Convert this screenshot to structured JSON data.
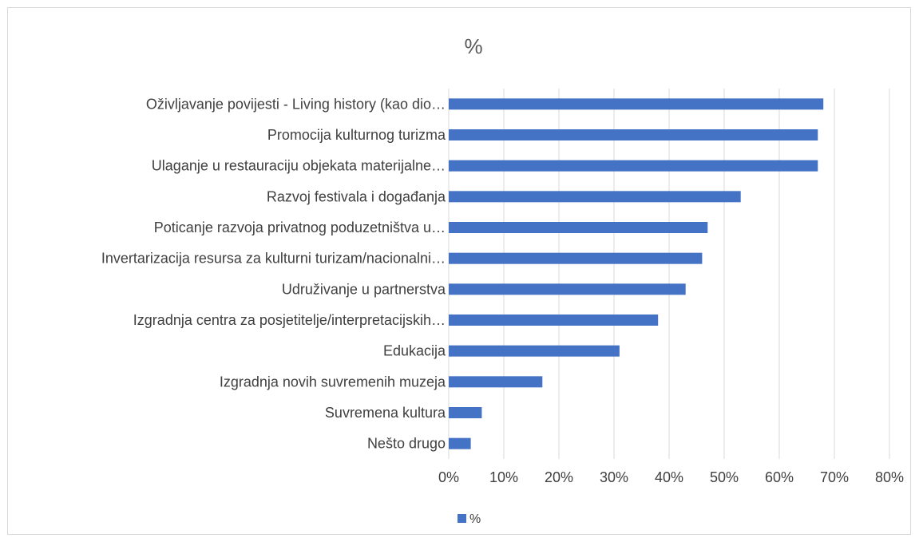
{
  "chart_data": {
    "type": "bar",
    "orientation": "horizontal",
    "title": "%",
    "categories": [
      "Oživljavanje povijesti - Living history (kao dio…",
      "Promocija kulturnog turizma",
      "Ulaganje u restauraciju objekata materijalne…",
      "Razvoj festivala i događanja",
      "Poticanje razvoja privatnog poduzetništva u…",
      "Invertarizacija resursa za kulturni turizam/nacionalni…",
      "Udruživanje u partnerstva",
      "Izgradnja centra za posjetitelje/interpretacijskih…",
      "Edukacija",
      "Izgradnja novih suvremenih muzeja",
      "Suvremena kultura",
      "Nešto drugo"
    ],
    "series": [
      {
        "name": "%",
        "values": [
          68,
          67,
          67,
          53,
          47,
          46,
          43,
          38,
          31,
          17,
          6,
          4
        ]
      }
    ],
    "xlim": [
      0,
      80
    ],
    "xticks": [
      "0%",
      "10%",
      "20%",
      "30%",
      "40%",
      "50%",
      "60%",
      "70%",
      "80%"
    ],
    "grid": "vertical",
    "legend": "bottom",
    "bar_color": "#4472c4"
  }
}
